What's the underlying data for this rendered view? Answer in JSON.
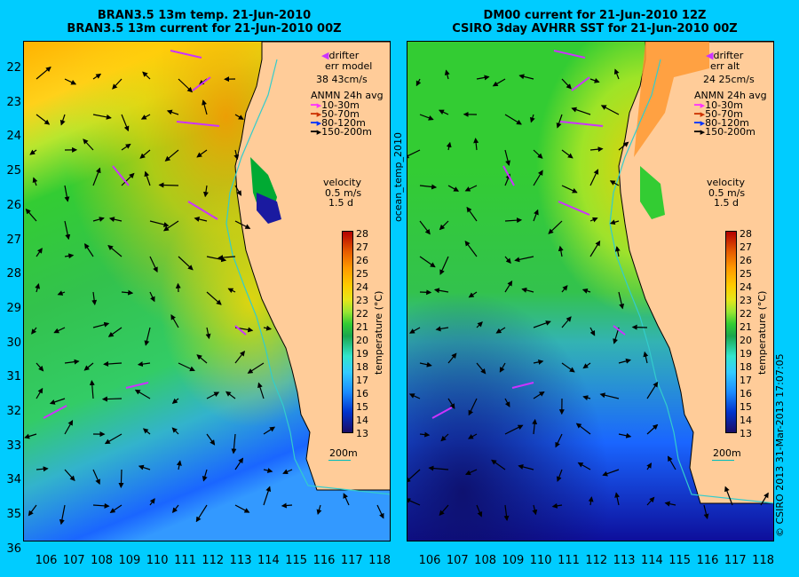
{
  "left_panel": {
    "title_line1": "BRAN3.5 13m temp. 21-Jun-2010",
    "title_line2": "BRAN3.5 13m current for 21-Jun-2010 00Z",
    "drifter": "drifter",
    "err_label": "err model",
    "err_values": "38 43cm/s",
    "anmn_title": "ANMN 24h avg",
    "anmn_items": [
      "10-30m",
      "50-70m",
      "80-120m",
      "150-200m"
    ],
    "velocity_label": "velocity",
    "velocity_value": "0.5 m/s",
    "velocity_time": "1.5 d",
    "scale_label": "200m",
    "side_label": "ocean_temp_2010"
  },
  "right_panel": {
    "title_line1": "DM00 current for 21-Jun-2010 12Z",
    "title_line2": "CSIRO 3day AVHRR SST for 21-Jun-2010 00Z",
    "drifter": "drifter",
    "err_label": "err alt",
    "err_values": "24 25cm/s",
    "anmn_title": "ANMN 24h avg",
    "anmn_items": [
      "10-30m",
      "50-70m",
      "80-120m",
      "150-200m"
    ],
    "velocity_label": "velocity",
    "velocity_value": "0.5 m/s",
    "velocity_time": "1.5 d",
    "scale_label": "200m",
    "side_label": "© CSIRO 2013   31-Mar-2013 17:07:05"
  },
  "colorbar": {
    "unit_label": "temperature (°C)",
    "ticks": [
      "28",
      "27",
      "26",
      "25",
      "24",
      "23",
      "22",
      "21",
      "20",
      "19",
      "18",
      "17",
      "16",
      "15",
      "14",
      "13"
    ]
  },
  "latitude_ticks": [
    "22",
    "23",
    "24",
    "25",
    "26",
    "27",
    "28",
    "29",
    "30",
    "31",
    "32",
    "33",
    "34",
    "35",
    "36"
  ],
  "longitude_ticks": [
    "106",
    "107",
    "108",
    "109",
    "110",
    "111",
    "112",
    "113",
    "114",
    "115",
    "116",
    "117",
    "118"
  ],
  "colors": {
    "background": "#00ccff",
    "land": "#ffcc99",
    "drifter": "#cc33ff",
    "anmn_10_30": "#ff33ff",
    "anmn_50_70": "#cc3300",
    "anmn_80_120": "#0033ff",
    "anmn_150_200": "#000000",
    "isobath": "#33cccc"
  }
}
